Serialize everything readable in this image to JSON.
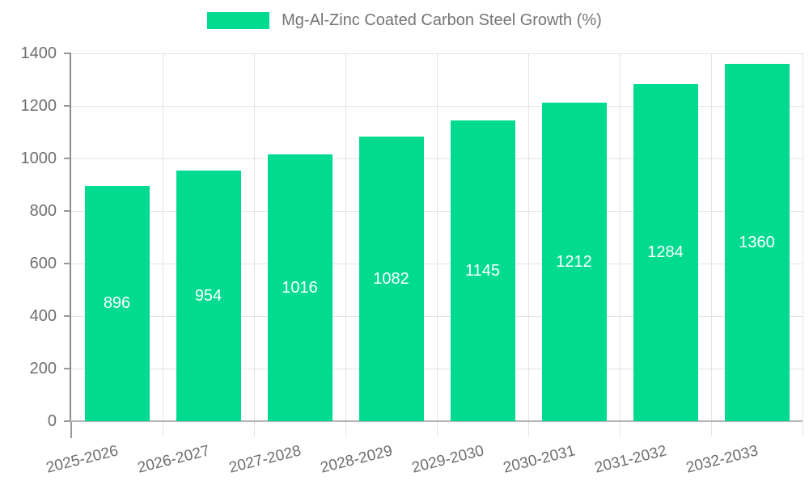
{
  "chart_data": {
    "type": "bar",
    "legend": "Mg-Al-Zinc Coated Carbon Steel Growth (%)",
    "categories": [
      "2025-2026",
      "2026-2027",
      "2027-2028",
      "2028-2029",
      "2029-2030",
      "2030-2031",
      "2031-2032",
      "2032-2033"
    ],
    "values": [
      896,
      954,
      1016,
      1082,
      1145,
      1212,
      1284,
      1360
    ],
    "series": [
      {
        "name": "Mg-Al-Zinc Coated Carbon Steel Growth (%)",
        "values": [
          896,
          954,
          1016,
          1082,
          1145,
          1212,
          1284,
          1360
        ]
      }
    ],
    "title": "",
    "xlabel": "",
    "ylabel": "",
    "ylim": [
      0,
      1400
    ],
    "y_ticks": [
      0,
      200,
      400,
      600,
      800,
      1000,
      1200,
      1400
    ],
    "grid": true,
    "legend_position": "top-center",
    "value_labels": "inside-middle",
    "colors": {
      "bar": "#00db90",
      "bar_value_text": "#ffffff",
      "axis_text": "#6f6f6f",
      "legend_text": "#757575",
      "y_axis_line": "#8c8c8c",
      "x_axis_line": "#b5b5b5",
      "gridline": "#e4e4e4",
      "background": "#ffffff"
    }
  }
}
